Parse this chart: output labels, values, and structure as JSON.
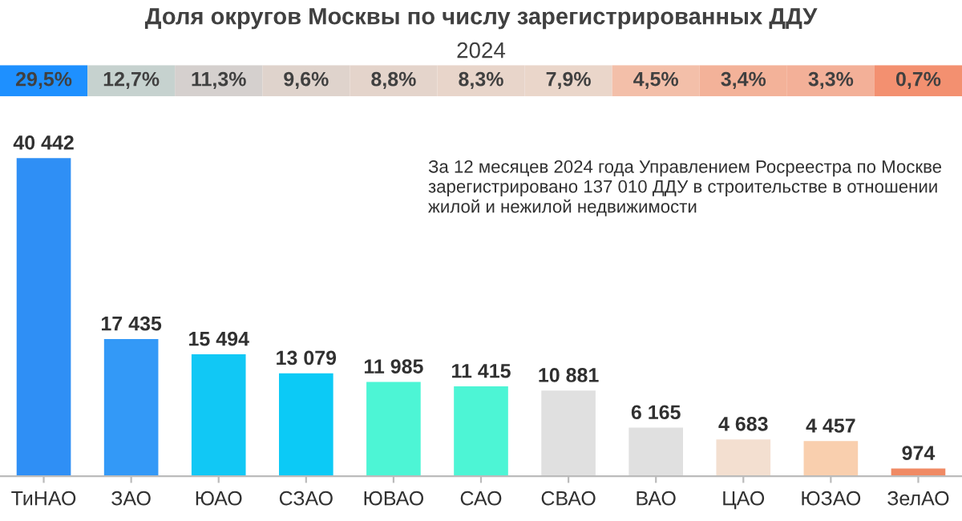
{
  "chart_data": [
    {
      "type": "heatmap",
      "title": "Доля округов Москвы по числу зарегистрированных ДДУ",
      "subtitle": "2024",
      "categories": [
        null,
        null,
        null,
        null,
        null,
        null,
        null,
        null,
        null,
        null,
        null
      ],
      "y_categories": [
        null
      ],
      "cells": [
        [
          29.5,
          12.7,
          11.3,
          9.6,
          8.8,
          8.3,
          7.9,
          4.5,
          3.4,
          3.3,
          0.7
        ]
      ],
      "cell_labels": [
        [
          "29,5%",
          "12,7%",
          "11,3%",
          "9,6%",
          "8,8%",
          "8,3%",
          "7,9%",
          "4,5%",
          "3,4%",
          "3,3%",
          "0,7%"
        ]
      ]
    },
    {
      "type": "bar",
      "categories": [
        "ТиНАО",
        "ЗАО",
        "ЮАО",
        "СЗАО",
        "ЮВАО",
        "САО",
        "СВАО",
        "ВАО",
        "ЦАО",
        "ЮЗАО",
        "ЗелАО"
      ],
      "values": [
        40442,
        17435,
        15494,
        13079,
        11985,
        11415,
        10881,
        6165,
        4683,
        4457,
        974
      ],
      "colors": [
        "#2f8ff5",
        "#3399f7",
        "#11c8f5",
        "#0ccaf6",
        "#4df5d5",
        "#4df5d5",
        "#e0e0e0",
        "#e0e0e0",
        "#f3dfd0",
        "#f9cfae",
        "#f08a64"
      ],
      "value_labels": [
        "40 442",
        "17 435",
        "15 494",
        "13 079",
        "11 985",
        "11 415",
        "10 881",
        "6 165",
        "4 683",
        "4 457",
        "974"
      ],
      "annotations": [
        "За 12 месяцев 2024 года Управлением Росреестра по Москве\nзарегистрировано 137 010 ДДУ в строительстве в отношении\nжилой и нежилой недвижимости"
      ],
      "grid": false,
      "legend": false
    }
  ]
}
